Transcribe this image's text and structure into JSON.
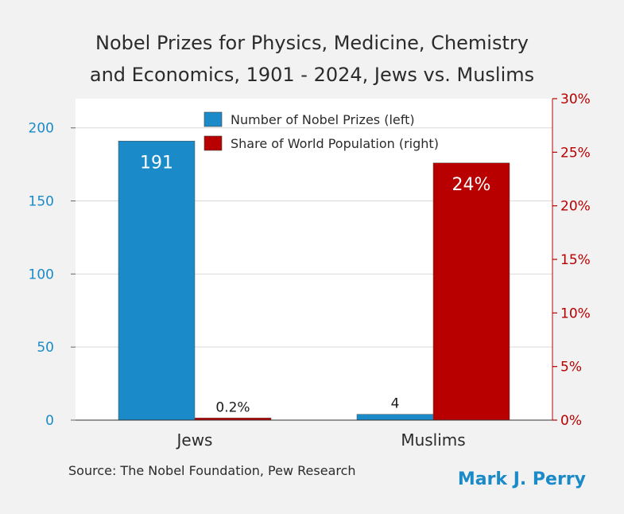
{
  "chart_data": {
    "type": "bar",
    "title_lines": [
      "Nobel Prizes for Physics, Medicine, Chemistry",
      "and Economics, 1901 - 2024, Jews vs. Muslims"
    ],
    "categories": [
      "Jews",
      "Muslims"
    ],
    "series": [
      {
        "name": "Number of Nobel Prizes (left)",
        "axis": "left",
        "color": "#1a8ac8",
        "values": [
          191,
          4
        ],
        "labels": [
          "191",
          "4"
        ]
      },
      {
        "name": "Share of World Population (right)",
        "axis": "right",
        "color": "#b80000",
        "values": [
          0.2,
          24
        ],
        "labels": [
          "0.2%",
          "24%"
        ]
      }
    ],
    "left_axis": {
      "min": 0,
      "max": 220,
      "ticks": [
        0,
        50,
        100,
        150,
        200
      ],
      "tick_labels": [
        "0",
        "50",
        "100",
        "150",
        "200"
      ],
      "color": "#1a8ac8"
    },
    "right_axis": {
      "min": 0,
      "max": 30,
      "ticks": [
        0,
        5,
        10,
        15,
        20,
        25,
        30
      ],
      "tick_labels": [
        "0%",
        "5%",
        "10%",
        "15%",
        "20%",
        "25%",
        "30%"
      ],
      "color": "#b80000"
    },
    "legend_position": "top-center",
    "gridlines": true
  },
  "source": "Source: The Nobel Foundation, Pew Research",
  "author": "Mark J. Perry"
}
